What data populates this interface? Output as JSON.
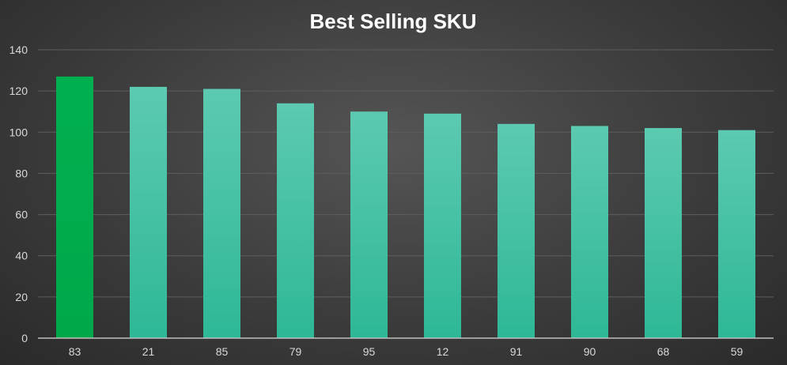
{
  "chart_data": {
    "type": "bar",
    "title": "Best Selling SKU",
    "xlabel": "",
    "ylabel": "",
    "categories": [
      "83",
      "21",
      "85",
      "79",
      "95",
      "12",
      "91",
      "90",
      "68",
      "59"
    ],
    "values": [
      127,
      122,
      121,
      114,
      110,
      109,
      104,
      103,
      102,
      101
    ],
    "ylim": [
      0,
      140
    ],
    "yticks": [
      "0",
      "20",
      "40",
      "60",
      "80",
      "100",
      "120",
      "140"
    ],
    "grid": true,
    "legend": "none",
    "colors": {
      "highlight_top": "#00b050",
      "highlight_bottom": "#00a84a",
      "bar_top": "#5ccab0",
      "bar_bottom": "#2eb896",
      "background": "#404040"
    }
  }
}
